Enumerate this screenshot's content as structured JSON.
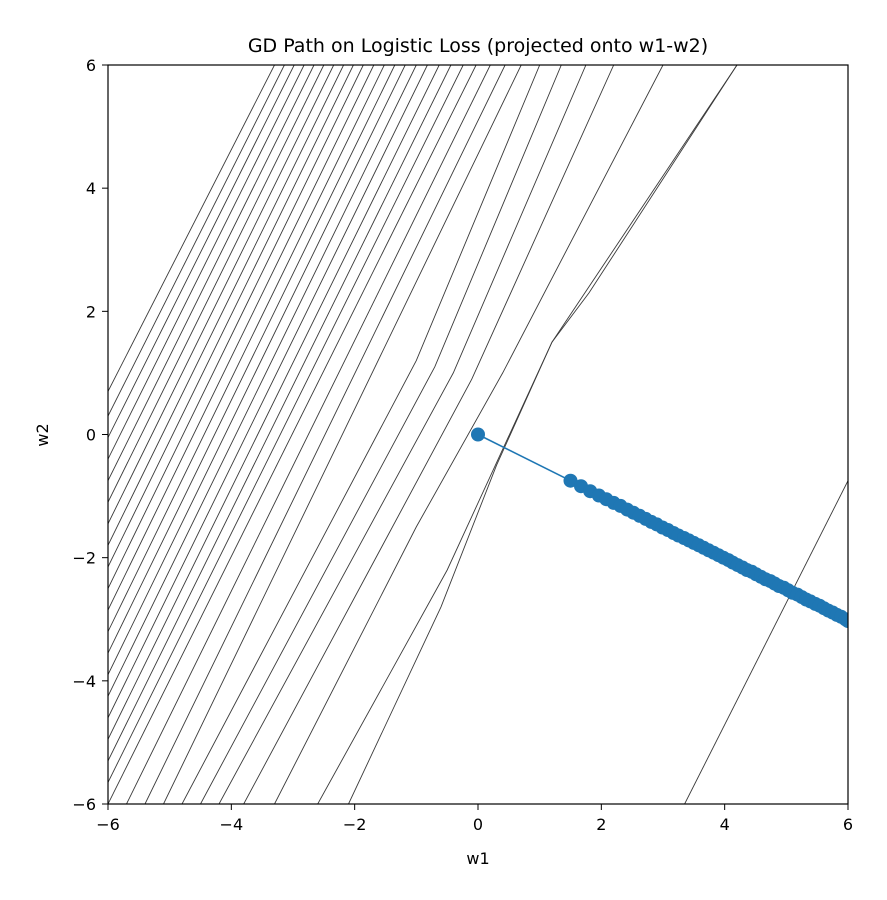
{
  "chart_data": {
    "type": "line",
    "title": "GD Path on Logistic Loss (projected onto w1-w2)",
    "xlabel": "w1",
    "ylabel": "w2",
    "xlim": [
      -6,
      6
    ],
    "ylim": [
      -6,
      6
    ],
    "xticks": [
      -6,
      -4,
      -2,
      0,
      2,
      4,
      6
    ],
    "yticks": [
      -6,
      -4,
      -2,
      0,
      2,
      4,
      6
    ],
    "grid": false,
    "legend": "none",
    "colors": {
      "path": "#1f77b4",
      "contour": "#3a3a3a",
      "axes": "#000000"
    },
    "series": [
      {
        "kind": "gd_path",
        "marker": "circle",
        "x": [
          0.0,
          1.5,
          1.67,
          1.82,
          1.96,
          2.08,
          2.2,
          2.31,
          2.42,
          2.52,
          2.62,
          2.72,
          2.81,
          2.9,
          2.99,
          3.08,
          3.17,
          3.25,
          3.34,
          3.42,
          3.5,
          3.58,
          3.66,
          3.74,
          3.82,
          3.9,
          3.98,
          4.06,
          4.13,
          4.21,
          4.29,
          4.36,
          4.44,
          4.51,
          4.59,
          4.66,
          4.74,
          4.81,
          4.88,
          4.96,
          5.03,
          5.1,
          5.18,
          5.25,
          5.32,
          5.39,
          5.47,
          5.54,
          5.61,
          5.68,
          5.75,
          5.82,
          5.89,
          5.96,
          6.0
        ],
        "y": [
          0.0,
          -0.75,
          -0.84,
          -0.92,
          -0.99,
          -1.05,
          -1.11,
          -1.16,
          -1.22,
          -1.27,
          -1.32,
          -1.37,
          -1.42,
          -1.46,
          -1.51,
          -1.55,
          -1.6,
          -1.64,
          -1.68,
          -1.72,
          -1.76,
          -1.8,
          -1.84,
          -1.88,
          -1.92,
          -1.96,
          -2.0,
          -2.04,
          -2.08,
          -2.12,
          -2.16,
          -2.2,
          -2.23,
          -2.27,
          -2.31,
          -2.35,
          -2.38,
          -2.42,
          -2.46,
          -2.49,
          -2.53,
          -2.57,
          -2.6,
          -2.64,
          -2.68,
          -2.71,
          -2.75,
          -2.78,
          -2.82,
          -2.86,
          -2.89,
          -2.93,
          -2.96,
          -3.0,
          -3.03
        ]
      },
      {
        "kind": "contours",
        "lines": [
          {
            "x": [
              -6.0,
              -3.3
            ],
            "y": [
              0.7,
              6.0
            ]
          },
          {
            "x": [
              -6.0,
              -3.14
            ],
            "y": [
              0.3,
              6.0
            ]
          },
          {
            "x": [
              -6.0,
              -2.98
            ],
            "y": [
              -0.05,
              6.0
            ]
          },
          {
            "x": [
              -6.0,
              -2.82
            ],
            "y": [
              -0.4,
              6.0
            ]
          },
          {
            "x": [
              -6.0,
              -2.66
            ],
            "y": [
              -0.75,
              6.0
            ]
          },
          {
            "x": [
              -6.0,
              -2.5
            ],
            "y": [
              -1.1,
              6.0
            ]
          },
          {
            "x": [
              -6.0,
              -2.34
            ],
            "y": [
              -1.45,
              6.0
            ]
          },
          {
            "x": [
              -6.0,
              -2.18
            ],
            "y": [
              -1.8,
              6.0
            ]
          },
          {
            "x": [
              -6.0,
              -2.02
            ],
            "y": [
              -2.15,
              6.0
            ]
          },
          {
            "x": [
              -6.0,
              -1.86
            ],
            "y": [
              -2.5,
              6.0
            ]
          },
          {
            "x": [
              -6.0,
              -1.69
            ],
            "y": [
              -2.85,
              6.0
            ]
          },
          {
            "x": [
              -6.0,
              -1.52
            ],
            "y": [
              -3.2,
              6.0
            ]
          },
          {
            "x": [
              -6.0,
              -1.35
            ],
            "y": [
              -3.55,
              6.0
            ]
          },
          {
            "x": [
              -6.0,
              -1.18
            ],
            "y": [
              -3.9,
              6.0
            ]
          },
          {
            "x": [
              -6.0,
              -1.0
            ],
            "y": [
              -4.25,
              6.0
            ]
          },
          {
            "x": [
              -6.0,
              -0.82
            ],
            "y": [
              -4.6,
              6.0
            ]
          },
          {
            "x": [
              -6.0,
              -0.63
            ],
            "y": [
              -4.95,
              6.0
            ]
          },
          {
            "x": [
              -6.0,
              -0.44
            ],
            "y": [
              -5.3,
              6.0
            ]
          },
          {
            "x": [
              -6.0,
              -0.24
            ],
            "y": [
              -5.65,
              6.0
            ]
          },
          {
            "x": [
              -6.0,
              -0.03
            ],
            "y": [
              -6.0,
              6.0
            ]
          },
          {
            "x": [
              -5.7,
              0.2
            ],
            "y": [
              -6.0,
              6.0
            ]
          },
          {
            "x": [
              -5.4,
              0.44
            ],
            "y": [
              -6.0,
              6.0
            ]
          },
          {
            "x": [
              -5.1,
              0.7
            ],
            "y": [
              -6.0,
              6.0
            ]
          },
          {
            "x": [
              -4.8,
              -1.0,
              1.0
            ],
            "y": [
              -6.0,
              1.2,
              6.0
            ]
          },
          {
            "x": [
              -4.5,
              -0.7,
              1.35
            ],
            "y": [
              -6.0,
              1.1,
              6.0
            ]
          },
          {
            "x": [
              -4.2,
              -0.4,
              1.75
            ],
            "y": [
              -6.0,
              1.0,
              6.0
            ]
          },
          {
            "x": [
              -3.8,
              -0.1,
              2.2
            ],
            "y": [
              -6.0,
              0.9,
              6.0
            ]
          },
          {
            "x": [
              -3.3,
              -1.0,
              0.4,
              3.0
            ],
            "y": [
              -6.0,
              -1.5,
              1.0,
              6.0
            ]
          },
          {
            "x": [
              -2.6,
              -0.5,
              1.2,
              4.2
            ],
            "y": [
              -6.0,
              -2.2,
              1.5,
              6.0
            ]
          },
          {
            "x": [
              -2.1,
              -0.6,
              0.3,
              1.2,
              1.8,
              4.2
            ],
            "y": [
              -6.0,
              -2.8,
              -0.5,
              1.5,
              2.3,
              6.0
            ]
          },
          {
            "x": [
              3.35,
              6.0
            ],
            "y": [
              -6.0,
              -0.75
            ]
          }
        ]
      }
    ]
  }
}
